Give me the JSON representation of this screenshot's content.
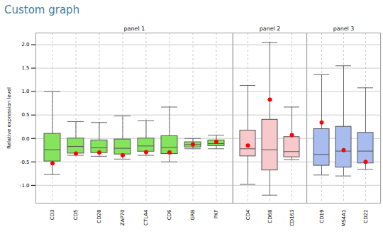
{
  "chart_data": {
    "type": "box",
    "title": "Custom graph",
    "y_label": "Relative expression level",
    "ylim": [
      -1.38,
      2.25
    ],
    "yticks": [
      {
        "value": -1,
        "label": "-1.0"
      },
      {
        "value": -0.5,
        "label": "-0.5"
      },
      {
        "value": 0,
        "label": "0.0"
      },
      {
        "value": 0.5,
        "label": "0.5"
      },
      {
        "value": 1,
        "label": "1.0"
      },
      {
        "value": 1.5,
        "label": "1.5"
      },
      {
        "value": 2,
        "label": "2.0"
      }
    ],
    "grid": true,
    "panels": [
      {
        "name": "panel 1",
        "color": "#84e55c",
        "categories": [
          "CD3",
          "CD5",
          "CD28",
          "ZAP70",
          "CTLA4",
          "CD6",
          "GRB",
          "PKF"
        ],
        "whisker_low": [
          -0.77,
          -0.36,
          -0.38,
          -0.44,
          -0.36,
          -0.5,
          -0.22,
          -0.22
        ],
        "q1": [
          -0.49,
          -0.32,
          -0.31,
          -0.34,
          -0.28,
          -0.33,
          -0.19,
          -0.16
        ],
        "median": [
          -0.24,
          -0.17,
          -0.2,
          -0.21,
          -0.16,
          -0.19,
          -0.13,
          -0.11
        ],
        "q3": [
          0.1,
          0.0,
          -0.04,
          -0.02,
          0.0,
          0.05,
          -0.08,
          -0.04
        ],
        "whisker_high": [
          1.0,
          0.36,
          0.34,
          0.48,
          0.38,
          0.67,
          0.0,
          0.07
        ],
        "points": {
          "color": "#ff0000",
          "marker": "circle",
          "values": [
            -0.53,
            -0.32,
            -0.3,
            -0.36,
            -0.29,
            -0.3,
            -0.13,
            -0.07
          ]
        }
      },
      {
        "name": "panel 2",
        "color": "#f8c9cb",
        "categories": [
          "CD4",
          "CD68",
          "CD163"
        ],
        "whisker_low": [
          -0.98,
          -1.21,
          -0.45
        ],
        "q1": [
          -0.38,
          -0.68,
          -0.4
        ],
        "median": [
          -0.22,
          -0.24,
          -0.28
        ],
        "q3": [
          0.17,
          0.4,
          0.03
        ],
        "whisker_high": [
          1.13,
          2.05,
          0.67
        ],
        "points": {
          "color": "#ff0000",
          "marker": "circle",
          "values": [
            -0.15,
            0.83,
            0.07
          ]
        }
      },
      {
        "name": "panel 3",
        "color": "#a8bcf0",
        "categories": [
          "CD19",
          "MS4A1",
          "CD22"
        ],
        "whisker_low": [
          -0.78,
          -0.8,
          -0.66
        ],
        "q1": [
          -0.58,
          -0.62,
          -0.53
        ],
        "median": [
          -0.34,
          -0.27,
          -0.27
        ],
        "q3": [
          0.2,
          0.25,
          0.12
        ],
        "whisker_high": [
          1.36,
          1.55,
          1.08
        ],
        "points": {
          "color": "#ff0000",
          "marker": "circle",
          "values": [
            0.34,
            -0.25,
            -0.5
          ]
        }
      }
    ]
  }
}
